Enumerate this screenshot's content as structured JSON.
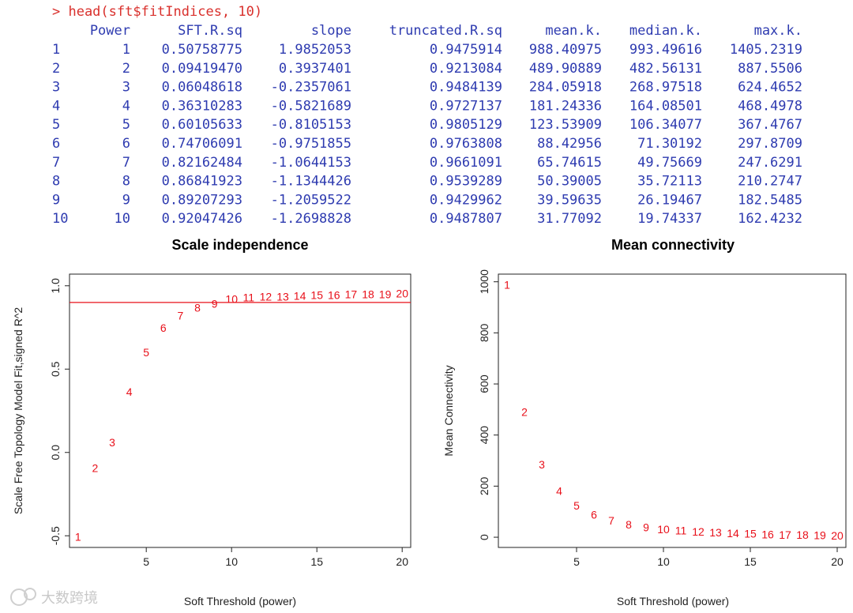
{
  "console": {
    "prompt": "> head(sft$fitIndices, 10)",
    "columns": [
      "Power",
      "SFT.R.sq",
      "slope",
      "truncated.R.sq",
      "mean.k.",
      "median.k.",
      "max.k."
    ],
    "rows": [
      [
        "1",
        "1",
        "0.50758775",
        "1.9852053",
        "0.9475914",
        "988.40975",
        "993.49616",
        "1405.2319"
      ],
      [
        "2",
        "2",
        "0.09419470",
        "0.3937401",
        "0.9213084",
        "489.90889",
        "482.56131",
        "887.5506"
      ],
      [
        "3",
        "3",
        "0.06048618",
        "-0.2357061",
        "0.9484139",
        "284.05918",
        "268.97518",
        "624.4652"
      ],
      [
        "4",
        "4",
        "0.36310283",
        "-0.5821689",
        "0.9727137",
        "181.24336",
        "164.08501",
        "468.4978"
      ],
      [
        "5",
        "5",
        "0.60105633",
        "-0.8105153",
        "0.9805129",
        "123.53909",
        "106.34077",
        "367.4767"
      ],
      [
        "6",
        "6",
        "0.74706091",
        "-0.9751855",
        "0.9763808",
        "88.42956",
        "71.30192",
        "297.8709"
      ],
      [
        "7",
        "7",
        "0.82162484",
        "-1.0644153",
        "0.9661091",
        "65.74615",
        "49.75669",
        "247.6291"
      ],
      [
        "8",
        "8",
        "0.86841923",
        "-1.1344426",
        "0.9539289",
        "50.39005",
        "35.72113",
        "210.2747"
      ],
      [
        "9",
        "9",
        "0.89207293",
        "-1.2059522",
        "0.9429962",
        "39.59635",
        "26.19467",
        "182.5485"
      ],
      [
        "10",
        "10",
        "0.92047426",
        "-1.2698828",
        "0.9487807",
        "31.77092",
        "19.74337",
        "162.4232"
      ]
    ]
  },
  "colors": {
    "prompt": "#d9302c",
    "table_text": "#2e3bb0",
    "points": "#e8101a",
    "cutline": "#e8101a"
  },
  "watermark": "大数跨境",
  "chart_data": [
    {
      "type": "scatter",
      "title": "Scale independence",
      "xlabel": "Soft Threshold (power)",
      "ylabel": "Scale Free Topology Model Fit,signed R^2",
      "xlim": [
        0.5,
        20.5
      ],
      "ylim": [
        -0.57,
        1.07
      ],
      "xticks": [
        5,
        10,
        15,
        20
      ],
      "yticks": [
        -0.5,
        0.0,
        0.5,
        1.0
      ],
      "ytick_labels": [
        "-0.5",
        "0.0",
        "0.5",
        "1.0"
      ],
      "hline": 0.9,
      "points": [
        {
          "x": 1,
          "y": -0.507,
          "label": "1"
        },
        {
          "x": 2,
          "y": -0.094,
          "label": "2"
        },
        {
          "x": 3,
          "y": 0.06,
          "label": "3"
        },
        {
          "x": 4,
          "y": 0.363,
          "label": "4"
        },
        {
          "x": 5,
          "y": 0.601,
          "label": "5"
        },
        {
          "x": 6,
          "y": 0.747,
          "label": "6"
        },
        {
          "x": 7,
          "y": 0.822,
          "label": "7"
        },
        {
          "x": 8,
          "y": 0.868,
          "label": "8"
        },
        {
          "x": 9,
          "y": 0.892,
          "label": "9"
        },
        {
          "x": 10,
          "y": 0.92,
          "label": "10"
        },
        {
          "x": 11,
          "y": 0.93,
          "label": "11"
        },
        {
          "x": 12,
          "y": 0.935,
          "label": "12"
        },
        {
          "x": 13,
          "y": 0.935,
          "label": "13"
        },
        {
          "x": 14,
          "y": 0.94,
          "label": "14"
        },
        {
          "x": 15,
          "y": 0.945,
          "label": "15"
        },
        {
          "x": 16,
          "y": 0.945,
          "label": "16"
        },
        {
          "x": 17,
          "y": 0.95,
          "label": "17"
        },
        {
          "x": 18,
          "y": 0.95,
          "label": "18"
        },
        {
          "x": 19,
          "y": 0.95,
          "label": "19"
        },
        {
          "x": 20,
          "y": 0.955,
          "label": "20"
        }
      ]
    },
    {
      "type": "scatter",
      "title": "Mean connectivity",
      "xlabel": "Soft Threshold (power)",
      "ylabel": "Mean Connectivity",
      "xlim": [
        0.5,
        20.5
      ],
      "ylim": [
        -40,
        1030
      ],
      "xticks": [
        5,
        10,
        15,
        20
      ],
      "yticks": [
        0,
        200,
        400,
        600,
        800,
        1000
      ],
      "ytick_labels": [
        "0",
        "200",
        "400",
        "600",
        "800",
        "1000"
      ],
      "points": [
        {
          "x": 1,
          "y": 988.4,
          "label": "1"
        },
        {
          "x": 2,
          "y": 489.9,
          "label": "2"
        },
        {
          "x": 3,
          "y": 284.1,
          "label": "3"
        },
        {
          "x": 4,
          "y": 181.2,
          "label": "4"
        },
        {
          "x": 5,
          "y": 123.5,
          "label": "5"
        },
        {
          "x": 6,
          "y": 88.4,
          "label": "6"
        },
        {
          "x": 7,
          "y": 65.7,
          "label": "7"
        },
        {
          "x": 8,
          "y": 50.4,
          "label": "8"
        },
        {
          "x": 9,
          "y": 39.6,
          "label": "9"
        },
        {
          "x": 10,
          "y": 31.8,
          "label": "10"
        },
        {
          "x": 11,
          "y": 26,
          "label": "11"
        },
        {
          "x": 12,
          "y": 21.5,
          "label": "12"
        },
        {
          "x": 13,
          "y": 18,
          "label": "13"
        },
        {
          "x": 14,
          "y": 15.5,
          "label": "14"
        },
        {
          "x": 15,
          "y": 13.5,
          "label": "15"
        },
        {
          "x": 16,
          "y": 11.5,
          "label": "16"
        },
        {
          "x": 17,
          "y": 10,
          "label": "17"
        },
        {
          "x": 18,
          "y": 9,
          "label": "18"
        },
        {
          "x": 19,
          "y": 8,
          "label": "19"
        },
        {
          "x": 20,
          "y": 7,
          "label": "20"
        }
      ]
    }
  ]
}
